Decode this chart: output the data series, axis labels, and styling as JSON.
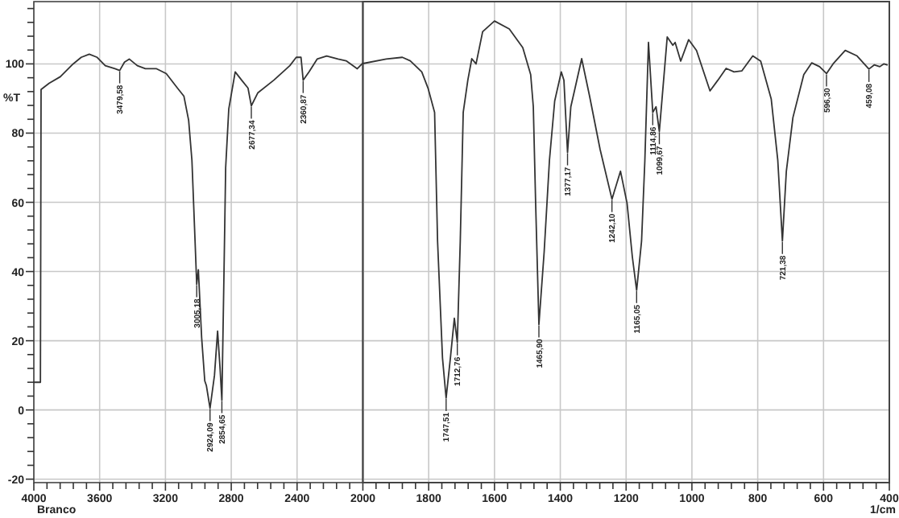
{
  "chart_data": [
    {
      "type": "line",
      "ylabel": "%T",
      "xlim": [
        4000,
        2000
      ],
      "ylim": [
        -21,
        118
      ],
      "xticks": [
        4000,
        {
          "value": 3920,
          "label": null
        },
        {
          "value": 3840,
          "label": null
        },
        {
          "value": 3760,
          "label": null
        },
        {
          "value": 3680,
          "label": null
        },
        3600,
        {
          "value": 3520,
          "label": null
        },
        {
          "value": 3440,
          "label": null
        },
        {
          "value": 3360,
          "label": null
        },
        {
          "value": 3280,
          "label": null
        },
        3200,
        {
          "value": 3120,
          "label": null
        },
        {
          "value": 3040,
          "label": null
        },
        {
          "value": 2960,
          "label": null
        },
        {
          "value": 2880,
          "label": null
        },
        2800,
        {
          "value": 2720,
          "label": null
        },
        {
          "value": 2640,
          "label": null
        },
        {
          "value": 2560,
          "label": null
        },
        {
          "value": 2480,
          "label": null
        },
        2400,
        {
          "value": 2320,
          "label": null
        },
        {
          "value": 2240,
          "label": null
        },
        {
          "value": 2160,
          "label": null
        },
        {
          "value": 2080,
          "label": null
        },
        2000
      ],
      "yticks": [
        -20,
        {
          "value": -16,
          "label": null
        },
        {
          "value": -12,
          "label": null
        },
        {
          "value": -8,
          "label": null
        },
        {
          "value": -4,
          "label": null
        },
        0,
        {
          "value": 4,
          "label": null
        },
        {
          "value": 8,
          "label": null
        },
        {
          "value": 12,
          "label": null
        },
        {
          "value": 16,
          "label": null
        },
        20,
        {
          "value": 24,
          "label": null
        },
        {
          "value": 28,
          "label": null
        },
        {
          "value": 32,
          "label": null
        },
        {
          "value": 36,
          "label": null
        },
        40,
        {
          "value": 44,
          "label": null
        },
        {
          "value": 48,
          "label": null
        },
        {
          "value": 52,
          "label": null
        },
        {
          "value": 56,
          "label": null
        },
        60,
        {
          "value": 64,
          "label": null
        },
        {
          "value": 68,
          "label": null
        },
        {
          "value": 72,
          "label": null
        },
        {
          "value": 76,
          "label": null
        },
        80,
        {
          "value": 84,
          "label": null
        },
        {
          "value": 88,
          "label": null
        },
        {
          "value": 92,
          "label": null
        },
        {
          "value": 96,
          "label": null
        },
        100,
        {
          "value": 104,
          "label": null
        },
        {
          "value": 108,
          "label": null
        },
        {
          "value": 112,
          "label": null
        },
        {
          "value": 116,
          "label": null
        }
      ],
      "grid": true,
      "series": [
        {
          "color": "#333333",
          "x": [
            4000,
            3960,
            3956,
            3907,
            3839,
            3761,
            3712,
            3663,
            3615,
            3566,
            3507,
            3478,
            3449,
            3420,
            3371,
            3322,
            3254,
            3195,
            3127,
            3088,
            3059,
            3039,
            3020,
            3010,
            3000,
            2980,
            2961,
            2951,
            2929,
            2902,
            2883,
            2868,
            2857,
            2844,
            2834,
            2815,
            2776,
            2737,
            2698,
            2678,
            2639,
            2541,
            2444,
            2405,
            2376,
            2363,
            2327,
            2278,
            2220,
            2151,
            2102,
            2034,
            2005,
            2000
          ],
          "values": [
            8,
            8,
            92.6,
            94.4,
            96.3,
            100,
            101.9,
            102.8,
            101.9,
            99.5,
            98.6,
            98.1,
            100.5,
            101.4,
            99.5,
            98.6,
            98.6,
            97.2,
            93,
            90.7,
            83.7,
            72.1,
            48.8,
            36.3,
            40.5,
            20.9,
            8.4,
            7,
            0.5,
            10,
            22.8,
            12,
            2.8,
            40,
            70,
            87,
            97.7,
            95.3,
            93,
            87.9,
            91.6,
            95.3,
            99.5,
            101.9,
            101.9,
            95.3,
            97.7,
            101.4,
            102.3,
            101.4,
            100.9,
            98.6,
            100,
            100.1
          ]
        }
      ],
      "annotations": [
        {
          "text": "3479,58",
          "x": 3478,
          "y": 98.1
        },
        {
          "text": "3005,18",
          "x": 3010,
          "y": 36.3
        },
        {
          "text": "2924,09",
          "x": 2929,
          "y": 0.5
        },
        {
          "text": "2854,65",
          "x": 2857,
          "y": 2.8
        },
        {
          "text": "2677,34",
          "x": 2678,
          "y": 87.9
        },
        {
          "text": "2360,87",
          "x": 2363,
          "y": 95.3
        },
        "Branco"
      ]
    },
    {
      "type": "line",
      "xlabel": "1/cm",
      "xlim": [
        2000,
        400
      ],
      "ylim": [
        -21,
        118
      ],
      "tick_labels": "x",
      "xticks": [
        {
          "value": 1960,
          "label": null
        },
        {
          "value": 1920,
          "label": null
        },
        {
          "value": 1880,
          "label": null
        },
        {
          "value": 1840,
          "label": null
        },
        1800,
        {
          "value": 1760,
          "label": null
        },
        {
          "value": 1720,
          "label": null
        },
        {
          "value": 1680,
          "label": null
        },
        {
          "value": 1640,
          "label": null
        },
        1600,
        {
          "value": 1560,
          "label": null
        },
        {
          "value": 1520,
          "label": null
        },
        {
          "value": 1480,
          "label": null
        },
        {
          "value": 1440,
          "label": null
        },
        1400,
        {
          "value": 1360,
          "label": null
        },
        {
          "value": 1320,
          "label": null
        },
        {
          "value": 1280,
          "label": null
        },
        {
          "value": 1240,
          "label": null
        },
        1200,
        {
          "value": 1160,
          "label": null
        },
        {
          "value": 1120,
          "label": null
        },
        {
          "value": 1080,
          "label": null
        },
        {
          "value": 1040,
          "label": null
        },
        1000,
        {
          "value": 960,
          "label": null
        },
        {
          "value": 920,
          "label": null
        },
        {
          "value": 880,
          "label": null
        },
        {
          "value": 840,
          "label": null
        },
        800,
        {
          "value": 760,
          "label": null
        },
        {
          "value": 720,
          "label": null
        },
        {
          "value": 680,
          "label": null
        },
        {
          "value": 640,
          "label": null
        },
        600,
        {
          "value": 560,
          "label": null
        },
        {
          "value": 520,
          "label": null
        },
        {
          "value": 480,
          "label": null
        },
        {
          "value": 440,
          "label": null
        },
        400
      ],
      "yticks": [
        -20,
        0,
        20,
        40,
        60,
        80,
        100
      ],
      "grid": true,
      "series": [
        {
          "color": "#333333",
          "x": [
            2000,
            1929,
            1880,
            1856,
            1821,
            1802,
            1782,
            1773,
            1758,
            1747,
            1734,
            1722,
            1713,
            1704,
            1695,
            1681,
            1669,
            1656,
            1636,
            1600,
            1555,
            1514,
            1490,
            1482,
            1475,
            1465,
            1449,
            1433,
            1417,
            1397,
            1389,
            1378,
            1368,
            1357,
            1335,
            1311,
            1279,
            1243,
            1217,
            1197,
            1181,
            1168,
            1153,
            1143,
            1132,
            1119,
            1109,
            1099,
            1075,
            1058,
            1051,
            1034,
            1010,
            986,
            945,
            921,
            896,
            872,
            848,
            815,
            791,
            759,
            739,
            725,
            713,
            693,
            660,
            636,
            612,
            591,
            571,
            534,
            498,
            462,
            446,
            429,
            417,
            407
          ],
          "values": [
            100.1,
            101.4,
            101.9,
            100.9,
            97.7,
            93,
            86,
            48.8,
            15,
            3.4,
            15,
            26.5,
            19.5,
            48.8,
            86,
            95.3,
            101.5,
            100,
            109.3,
            112.4,
            110.1,
            104.7,
            96.9,
            87.6,
            60,
            24.7,
            45.7,
            72.1,
            89.3,
            97.7,
            95.3,
            74.4,
            87.6,
            92.2,
            101.5,
            90.7,
            75.3,
            60.9,
            69,
            59.7,
            44.2,
            34.6,
            48.8,
            72.1,
            106.2,
            86,
            87.6,
            80.5,
            107.8,
            105.4,
            106.2,
            100.8,
            107,
            103.9,
            92.2,
            95.3,
            98.7,
            97.7,
            98,
            102.3,
            100.8,
            89.9,
            72.1,
            48.8,
            69,
            84.5,
            96.9,
            100.3,
            99.2,
            97.2,
            100,
            103.9,
            102.3,
            98.5,
            99.7,
            99.2,
            100,
            99.7
          ]
        }
      ],
      "annotations": [
        {
          "text": "1747,51",
          "x": 1747,
          "y": 3.4
        },
        {
          "text": "1712,76",
          "x": 1713,
          "y": 19.5
        },
        {
          "text": "1465,90",
          "x": 1465,
          "y": 24.7
        },
        {
          "text": "1377,17",
          "x": 1378,
          "y": 74.4
        },
        {
          "text": "1242,10",
          "x": 1243,
          "y": 60.9
        },
        {
          "text": "1165,05",
          "x": 1168,
          "y": 34.6
        },
        {
          "text": "1114,86",
          "x": 1119,
          "y": 86
        },
        {
          "text": "1099,67",
          "x": 1099,
          "y": 80.5
        },
        {
          "text": "721,38",
          "x": 725,
          "y": 48.8
        },
        {
          "text": "596,30",
          "x": 591,
          "y": 97.2
        },
        {
          "text": "459,08",
          "x": 462,
          "y": 98.5
        }
      ]
    }
  ]
}
